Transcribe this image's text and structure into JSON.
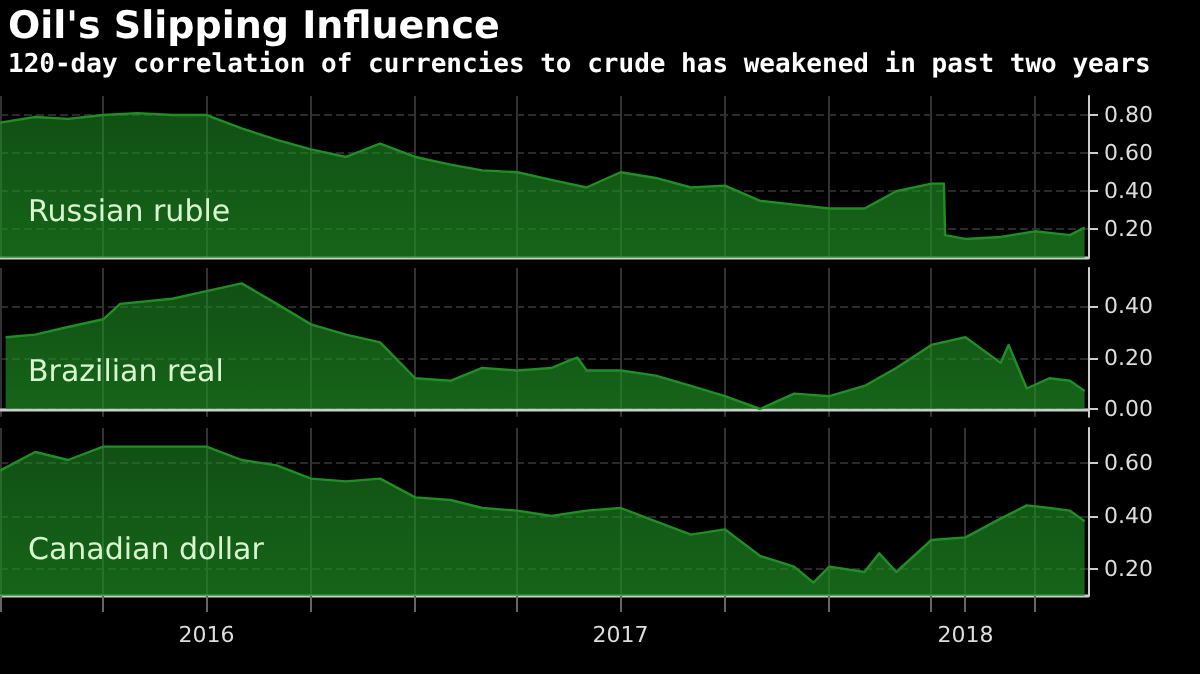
{
  "chart_data": [
    {
      "type": "area",
      "title": "Oil's Slipping Influence",
      "subtitle": "120-day correlation of currencies to crude has weakened in past two years",
      "legend": false,
      "grid": true,
      "tick_labels": "y",
      "xlim": [
        "2016-01-01",
        "2018-08-17"
      ],
      "xticks": [
        {
          "value": "2016-01-01",
          "label": null
        },
        {
          "value": "2016-04-01",
          "label": null
        },
        {
          "value": "2016-07-01",
          "label": null
        },
        {
          "value": "2016-10-01",
          "label": null
        },
        {
          "value": "2017-01-01",
          "label": null
        },
        {
          "value": "2017-04-01",
          "label": null
        },
        {
          "value": "2017-07-01",
          "label": null
        },
        {
          "value": "2017-10-01",
          "label": null
        },
        {
          "value": "2018-01-01",
          "label": null
        },
        {
          "value": "2018-04-01",
          "label": null
        },
        {
          "value": "2018-07-01",
          "label": null
        }
      ],
      "ylim": [
        0.05,
        0.9
      ],
      "yticks": [
        {
          "value": 0.2,
          "label": "0.20"
        },
        {
          "value": 0.4,
          "label": "0.40"
        },
        {
          "value": 0.6,
          "label": "0.60"
        },
        {
          "value": 0.8,
          "label": "0.80"
        }
      ],
      "series": [
        {
          "name": "Russian ruble",
          "color": "#1f8f24",
          "x": [
            "2016-01-01",
            "2016-02-01",
            "2016-03-01",
            "2016-04-01",
            "2016-05-01",
            "2016-06-01",
            "2016-07-01",
            "2016-08-01",
            "2016-09-01",
            "2016-10-01",
            "2016-11-01",
            "2016-12-01",
            "2017-01-01",
            "2017-02-01",
            "2017-03-01",
            "2017-04-01",
            "2017-05-01",
            "2017-06-01",
            "2017-07-01",
            "2017-08-01",
            "2017-09-01",
            "2017-10-01",
            "2017-11-01",
            "2017-12-01",
            "2018-01-01",
            "2018-02-01",
            "2018-03-01",
            "2018-04-01",
            "2018-04-12",
            "2018-04-13",
            "2018-05-01",
            "2018-06-01",
            "2018-07-01",
            "2018-08-01",
            "2018-08-14"
          ],
          "values": [
            0.76,
            0.79,
            0.78,
            0.8,
            0.81,
            0.8,
            0.8,
            0.73,
            0.67,
            0.62,
            0.58,
            0.65,
            0.58,
            0.54,
            0.51,
            0.5,
            0.46,
            0.42,
            0.5,
            0.47,
            0.42,
            0.43,
            0.35,
            0.33,
            0.31,
            0.31,
            0.4,
            0.44,
            0.44,
            0.17,
            0.15,
            0.16,
            0.19,
            0.17,
            0.21
          ]
        }
      ]
    },
    {
      "type": "area",
      "legend": false,
      "grid": true,
      "tick_labels": "y",
      "xlim": [
        "2016-01-01",
        "2018-08-17"
      ],
      "xticks": [
        {
          "value": "2016-01-01",
          "label": null
        },
        {
          "value": "2016-04-01",
          "label": null
        },
        {
          "value": "2016-07-01",
          "label": null
        },
        {
          "value": "2016-10-01",
          "label": null
        },
        {
          "value": "2017-01-01",
          "label": null
        },
        {
          "value": "2017-04-01",
          "label": null
        },
        {
          "value": "2017-07-01",
          "label": null
        },
        {
          "value": "2017-10-01",
          "label": null
        },
        {
          "value": "2018-01-01",
          "label": null
        },
        {
          "value": "2018-04-01",
          "label": null
        },
        {
          "value": "2018-07-01",
          "label": null
        }
      ],
      "ylim": [
        -0.03,
        0.55
      ],
      "yticks": [
        {
          "value": 0,
          "label": "0.00"
        },
        {
          "value": 0.2,
          "label": "0.20"
        },
        {
          "value": 0.4,
          "label": "0.40"
        }
      ],
      "series": [
        {
          "name": "Brazilian real",
          "color": "#1f8f24",
          "x": [
            "2016-01-06",
            "2016-02-01",
            "2016-03-01",
            "2016-04-01",
            "2016-04-16",
            "2016-06-01",
            "2016-07-01",
            "2016-08-01",
            "2016-09-01",
            "2016-10-01",
            "2016-11-01",
            "2016-12-01",
            "2017-01-01",
            "2017-02-01",
            "2017-03-01",
            "2017-04-01",
            "2017-05-01",
            "2017-05-17",
            "2017-05-24",
            "2017-06-01",
            "2017-07-01",
            "2017-08-01",
            "2017-09-01",
            "2017-10-01",
            "2017-11-01",
            "2017-12-01",
            "2018-01-01",
            "2018-02-01",
            "2018-03-01",
            "2018-04-01",
            "2018-05-01",
            "2018-06-01",
            "2018-06-08",
            "2018-06-24",
            "2018-07-14",
            "2018-08-01",
            "2018-08-14"
          ],
          "values": [
            0.28,
            0.29,
            0.32,
            0.35,
            0.41,
            0.43,
            0.46,
            0.49,
            0.41,
            0.33,
            0.29,
            0.26,
            0.12,
            0.11,
            0.16,
            0.15,
            0.16,
            0.19,
            0.2,
            0.15,
            0.15,
            0.13,
            0.09,
            0.05,
            0.0,
            0.06,
            0.05,
            0.09,
            0.16,
            0.25,
            0.28,
            0.18,
            0.25,
            0.08,
            0.12,
            0.11,
            0.07
          ]
        }
      ]
    },
    {
      "type": "area",
      "legend": false,
      "grid": true,
      "xlim": [
        "2016-01-01",
        "2018-08-17"
      ],
      "xticks": [
        {
          "value": "2016-01-01",
          "label": null
        },
        {
          "value": "2016-04-01",
          "label": null
        },
        {
          "value": "2016-07-01",
          "label": "2016"
        },
        {
          "value": "2016-10-01",
          "label": null
        },
        {
          "value": "2017-01-01",
          "label": null
        },
        {
          "value": "2017-04-01",
          "label": null
        },
        {
          "value": "2017-07-01",
          "label": "2017"
        },
        {
          "value": "2017-10-01",
          "label": null
        },
        {
          "value": "2018-01-01",
          "label": null
        },
        {
          "value": "2018-04-01",
          "label": null
        },
        {
          "value": "2018-05-01",
          "label": "2018"
        },
        {
          "value": "2018-07-01",
          "label": null
        }
      ],
      "ylim": [
        0.1,
        0.73
      ],
      "yticks": [
        {
          "value": 0.2,
          "label": "0.20"
        },
        {
          "value": 0.4,
          "label": "0.40"
        },
        {
          "value": 0.6,
          "label": "0.60"
        }
      ],
      "series": [
        {
          "name": "Canadian dollar",
          "color": "#1f8f24",
          "x": [
            "2016-01-01",
            "2016-02-01",
            "2016-03-01",
            "2016-04-01",
            "2016-05-01",
            "2016-06-01",
            "2016-07-01",
            "2016-08-01",
            "2016-09-01",
            "2016-10-01",
            "2016-11-01",
            "2016-12-01",
            "2017-01-01",
            "2017-02-01",
            "2017-03-01",
            "2017-04-01",
            "2017-05-01",
            "2017-06-01",
            "2017-07-01",
            "2017-08-01",
            "2017-09-01",
            "2017-10-01",
            "2017-11-01",
            "2017-12-01",
            "2017-12-18",
            "2018-01-01",
            "2018-02-01",
            "2018-02-14",
            "2018-03-01",
            "2018-04-01",
            "2018-05-01",
            "2018-06-01",
            "2018-06-24",
            "2018-07-14",
            "2018-08-01",
            "2018-08-14"
          ],
          "values": [
            0.57,
            0.64,
            0.61,
            0.66,
            0.66,
            0.66,
            0.66,
            0.61,
            0.59,
            0.54,
            0.53,
            0.54,
            0.47,
            0.46,
            0.43,
            0.42,
            0.4,
            0.42,
            0.43,
            0.38,
            0.33,
            0.35,
            0.25,
            0.21,
            0.15,
            0.21,
            0.19,
            0.26,
            0.19,
            0.31,
            0.32,
            0.39,
            0.44,
            0.43,
            0.42,
            0.38
          ]
        }
      ]
    }
  ]
}
